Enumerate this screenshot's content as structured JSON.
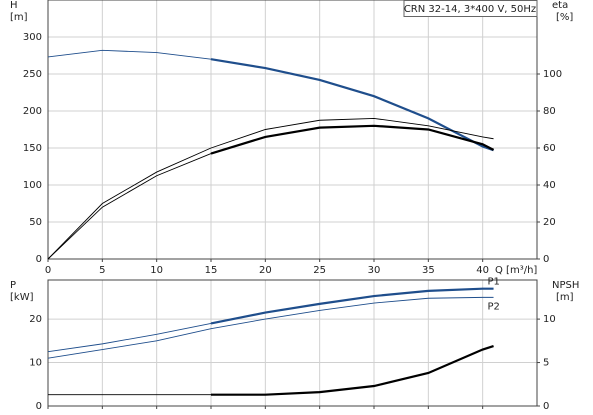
{
  "chart_data": [
    {
      "type": "line",
      "title": "CRN 32-14, 3*400 V, 50Hz",
      "ylabel": "H",
      "yunit": "[m]",
      "y2label": "eta",
      "y2unit": "[%]",
      "xlabel": "Q [m³/h]",
      "x": [
        0,
        5,
        10,
        15,
        20,
        25,
        30,
        35,
        40,
        41
      ],
      "xlim": [
        0,
        45
      ],
      "xticks": [
        0,
        5,
        10,
        15,
        20,
        25,
        30,
        35,
        40
      ],
      "show_xtick_labels": true,
      "ylim": [
        0,
        350
      ],
      "yticks": [
        0,
        50,
        100,
        150,
        200,
        250,
        300
      ],
      "y2lim": [
        0,
        140
      ],
      "y2ticks": [
        0,
        20,
        40,
        60,
        80,
        100
      ],
      "grid": true,
      "series": [
        {
          "color": "#1f4e8c",
          "axis": "y",
          "bold_from": 15,
          "values": [
            273,
            282,
            279,
            270,
            258,
            242,
            220,
            190,
            152,
            147
          ]
        },
        {
          "color": "#000000",
          "axis": "y2",
          "values": [
            0,
            30,
            47,
            60,
            70,
            75,
            76,
            72,
            66,
            65
          ]
        },
        {
          "color": "#000000",
          "axis": "y2",
          "bold_from": 15,
          "values": [
            0,
            28,
            45,
            57,
            66,
            71,
            72,
            70,
            62,
            59
          ]
        }
      ]
    },
    {
      "type": "line",
      "ylabel": "P",
      "yunit": "[kW]",
      "y2label": "NPSH",
      "y2unit": "[m]",
      "x": [
        0,
        5,
        10,
        15,
        20,
        25,
        30,
        35,
        40,
        41
      ],
      "xlim": [
        0,
        45
      ],
      "xticks": [
        0,
        5,
        10,
        15,
        20,
        25,
        30,
        35,
        40
      ],
      "show_xtick_labels": false,
      "ylim": [
        0,
        29
      ],
      "yticks": [
        0,
        10,
        20
      ],
      "y2lim": [
        0,
        14.5
      ],
      "y2ticks": [
        0,
        5,
        10
      ],
      "grid": true,
      "series": [
        {
          "name": "P1",
          "color": "#1f4e8c",
          "axis": "y",
          "bold_from": 15,
          "values": [
            12.5,
            14.3,
            16.5,
            19,
            21.5,
            23.5,
            25.3,
            26.5,
            27,
            27
          ]
        },
        {
          "name": "P2",
          "color": "#1f4e8c",
          "axis": "y",
          "values": [
            11,
            13,
            15,
            17.8,
            20,
            22,
            23.7,
            24.8,
            25,
            25
          ]
        },
        {
          "color": "#000000",
          "axis": "y2",
          "bold_from": 15,
          "values": [
            1.3,
            1.3,
            1.3,
            1.3,
            1.3,
            1.6,
            2.3,
            3.8,
            6.5,
            6.9
          ]
        }
      ]
    }
  ]
}
